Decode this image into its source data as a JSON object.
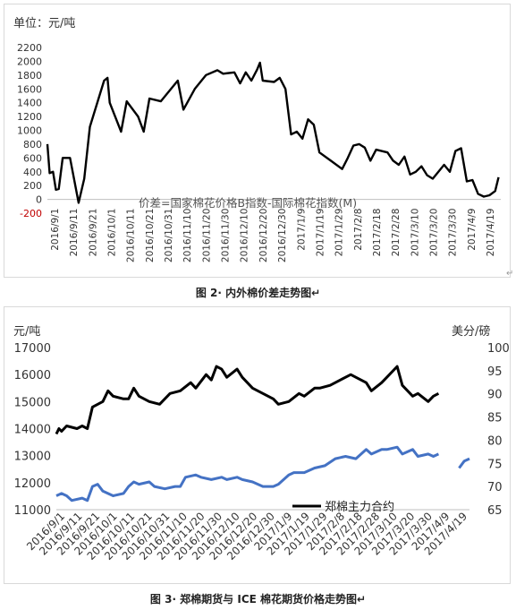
{
  "charts": [
    {
      "unit_label": "单位：元/吨",
      "caption": "图 2· 内外棉价差走势图↵",
      "chart_data": {
        "type": "line",
        "y_ticks": [
          "2200",
          "2000",
          "1800",
          "1600",
          "1400",
          "1200",
          "1000",
          "800",
          "600",
          "400",
          "200",
          "0",
          "-200"
        ],
        "ylim": [
          -200,
          2200
        ],
        "x_labels": [
          "2016/9/1",
          "2016/9/11",
          "2016/9/21",
          "2016/10/1",
          "2016/10/11",
          "2016/10/21",
          "2016/10/31",
          "2016/11/10",
          "2016/11/20",
          "2016/11/30",
          "2016/12/10",
          "2016/12/20",
          "2016/12/30",
          "2017/1/9",
          "2017/1/19",
          "2017/1/29",
          "2017/2/8",
          "2017/2/18",
          "2017/2/28",
          "2017/3/10",
          "2017/3/20",
          "2017/3/30",
          "2017/4/9",
          "2017/4/19"
        ],
        "annotation": "价差=国家棉花价格B指数-国际棉花指数(M)",
        "series": [
          {
            "color": "#000000",
            "points": [
              [
                0,
                800
              ],
              [
                0.4,
                380
              ],
              [
                1,
                400
              ],
              [
                1.5,
                140
              ],
              [
                2,
                150
              ],
              [
                2.7,
                600
              ],
              [
                4,
                600
              ],
              [
                5.5,
                -50
              ],
              [
                6.5,
                300
              ],
              [
                7.5,
                1050
              ],
              [
                10,
                1720
              ],
              [
                10.6,
                1760
              ],
              [
                11,
                1400
              ],
              [
                13,
                980
              ],
              [
                14,
                1420
              ],
              [
                16,
                1200
              ],
              [
                17,
                980
              ],
              [
                18,
                1460
              ],
              [
                20,
                1420
              ],
              [
                23,
                1720
              ],
              [
                24,
                1300
              ],
              [
                26,
                1600
              ],
              [
                28,
                1800
              ],
              [
                30,
                1870
              ],
              [
                31,
                1820
              ],
              [
                33,
                1840
              ],
              [
                34,
                1680
              ],
              [
                35,
                1840
              ],
              [
                36,
                1720
              ],
              [
                37,
                1880
              ],
              [
                37.5,
                1980
              ],
              [
                38,
                1720
              ],
              [
                40,
                1700
              ],
              [
                41,
                1760
              ],
              [
                42,
                1600
              ],
              [
                43,
                940
              ],
              [
                44,
                980
              ],
              [
                45,
                880
              ],
              [
                46,
                1160
              ],
              [
                47,
                1080
              ],
              [
                48,
                680
              ],
              [
                50,
                560
              ],
              [
                52,
                440
              ],
              [
                53,
                600
              ],
              [
                54,
                780
              ],
              [
                55,
                800
              ],
              [
                56,
                750
              ],
              [
                57,
                560
              ],
              [
                58,
                720
              ],
              [
                60,
                680
              ],
              [
                61,
                560
              ],
              [
                62,
                500
              ],
              [
                63,
                620
              ],
              [
                64,
                360
              ],
              [
                65,
                400
              ],
              [
                66,
                480
              ],
              [
                67,
                350
              ],
              [
                68,
                300
              ],
              [
                70,
                500
              ],
              [
                71,
                400
              ],
              [
                72,
                700
              ],
              [
                73,
                740
              ],
              [
                74,
                260
              ],
              [
                75,
                280
              ],
              [
                76,
                80
              ],
              [
                77,
                40
              ],
              [
                78,
                60
              ],
              [
                79,
                120
              ],
              [
                79.6,
                320
              ]
            ]
          }
        ]
      }
    },
    {
      "left_unit": "元/吨",
      "right_unit": "美分/磅",
      "caption": "图 3· 郑棉期货与 ICE 棉花期货价格走势图↵",
      "chart_data": {
        "type": "line",
        "y_ticks": [
          "17000",
          "16000",
          "15000",
          "14000",
          "13000",
          "12000",
          "11000"
        ],
        "ylim": [
          11000,
          17000
        ],
        "y2_ticks": [
          "100",
          "95",
          "90",
          "85",
          "80",
          "75",
          "70",
          "65"
        ],
        "y2lim": [
          65,
          100
        ],
        "x_labels": [
          "2016/9/1",
          "2016/9/11",
          "2016/9/21",
          "2016/10/1",
          "2016/10/11",
          "2016/10/21",
          "2016/10/31",
          "2016/11/10",
          "2016/11/20",
          "2016/11/30",
          "2016/12/10",
          "2016/12/20",
          "2016/12/30",
          "2017/1/9",
          "2017/1/19",
          "2017/1/29",
          "2017/2/8",
          "2017/2/18",
          "2017/2/28",
          "2017/3/10",
          "2017/3/20",
          "2017/3/30",
          "2017/4/9",
          "2017/4/19"
        ],
        "legend": "郑棉主力合约",
        "series": [
          {
            "name": "郑棉主力合约",
            "color": "#000000",
            "axis": "left",
            "points": [
              [
                0,
                13800
              ],
              [
                0.5,
                14000
              ],
              [
                1,
                13900
              ],
              [
                2,
                14100
              ],
              [
                4,
                14000
              ],
              [
                5,
                14100
              ],
              [
                6,
                14000
              ],
              [
                7,
                14800
              ],
              [
                9,
                15000
              ],
              [
                10,
                15400
              ],
              [
                11,
                15200
              ],
              [
                13,
                15100
              ],
              [
                14,
                15100
              ],
              [
                15,
                15500
              ],
              [
                16,
                15200
              ],
              [
                18,
                15000
              ],
              [
                20,
                14900
              ],
              [
                22,
                15300
              ],
              [
                24,
                15400
              ],
              [
                26,
                15700
              ],
              [
                27,
                15500
              ],
              [
                29,
                16000
              ],
              [
                30,
                15800
              ],
              [
                31,
                16300
              ],
              [
                32,
                16200
              ],
              [
                33,
                15900
              ],
              [
                35,
                16200
              ],
              [
                36,
                15900
              ],
              [
                38,
                15500
              ],
              [
                40,
                15300
              ],
              [
                42,
                15100
              ],
              [
                43,
                14900
              ],
              [
                45,
                15000
              ],
              [
                47,
                15300
              ],
              [
                48,
                15200
              ],
              [
                50,
                15500
              ],
              [
                51,
                15500
              ],
              [
                53,
                15600
              ],
              [
                55,
                15800
              ],
              [
                57,
                16000
              ],
              [
                58,
                15900
              ],
              [
                60,
                15700
              ],
              [
                61,
                15400
              ],
              [
                63,
                15700
              ],
              [
                64,
                15900
              ],
              [
                66,
                16300
              ],
              [
                67,
                15600
              ],
              [
                69,
                15200
              ],
              [
                70,
                15300
              ],
              [
                72,
                15000
              ],
              [
                73,
                15200
              ],
              [
                74,
                15300
              ]
            ]
          },
          {
            "color": "#4472c4",
            "axis": "right",
            "points": [
              [
                0,
                68
              ],
              [
                1,
                68.5
              ],
              [
                2,
                68
              ],
              [
                3,
                67
              ],
              [
                5,
                67.5
              ],
              [
                6,
                67
              ],
              [
                7,
                70
              ],
              [
                8,
                70.5
              ],
              [
                9,
                69
              ],
              [
                11,
                68
              ],
              [
                13,
                68.5
              ],
              [
                14,
                70
              ],
              [
                15,
                71
              ],
              [
                16,
                70.5
              ],
              [
                18,
                71
              ],
              [
                19,
                70
              ],
              [
                21,
                69.5
              ],
              [
                23,
                70
              ],
              [
                24,
                70
              ],
              [
                25,
                72
              ],
              [
                27,
                72.5
              ],
              [
                28,
                72
              ],
              [
                30,
                71.5
              ],
              [
                32,
                72
              ],
              [
                33,
                71.5
              ],
              [
                35,
                72
              ],
              [
                36,
                71.5
              ],
              [
                38,
                71
              ],
              [
                40,
                70
              ],
              [
                42,
                70
              ],
              [
                43,
                70.5
              ],
              [
                45,
                72.5
              ],
              [
                46,
                73
              ],
              [
                48,
                73
              ],
              [
                50,
                74
              ],
              [
                52,
                74.5
              ],
              [
                54,
                76
              ],
              [
                56,
                76.5
              ],
              [
                58,
                76
              ],
              [
                60,
                78
              ],
              [
                61,
                77
              ],
              [
                63,
                78
              ],
              [
                64,
                78
              ],
              [
                66,
                78.5
              ],
              [
                67,
                77
              ],
              [
                69,
                78
              ],
              [
                70,
                76.5
              ],
              [
                72,
                77
              ],
              [
                73,
                76.5
              ],
              [
                74,
                77
              ]
            ],
            "gap_points": [
              [
                78,
                74
              ],
              [
                79,
                75.5
              ],
              [
                80,
                76
              ]
            ]
          }
        ]
      }
    }
  ]
}
